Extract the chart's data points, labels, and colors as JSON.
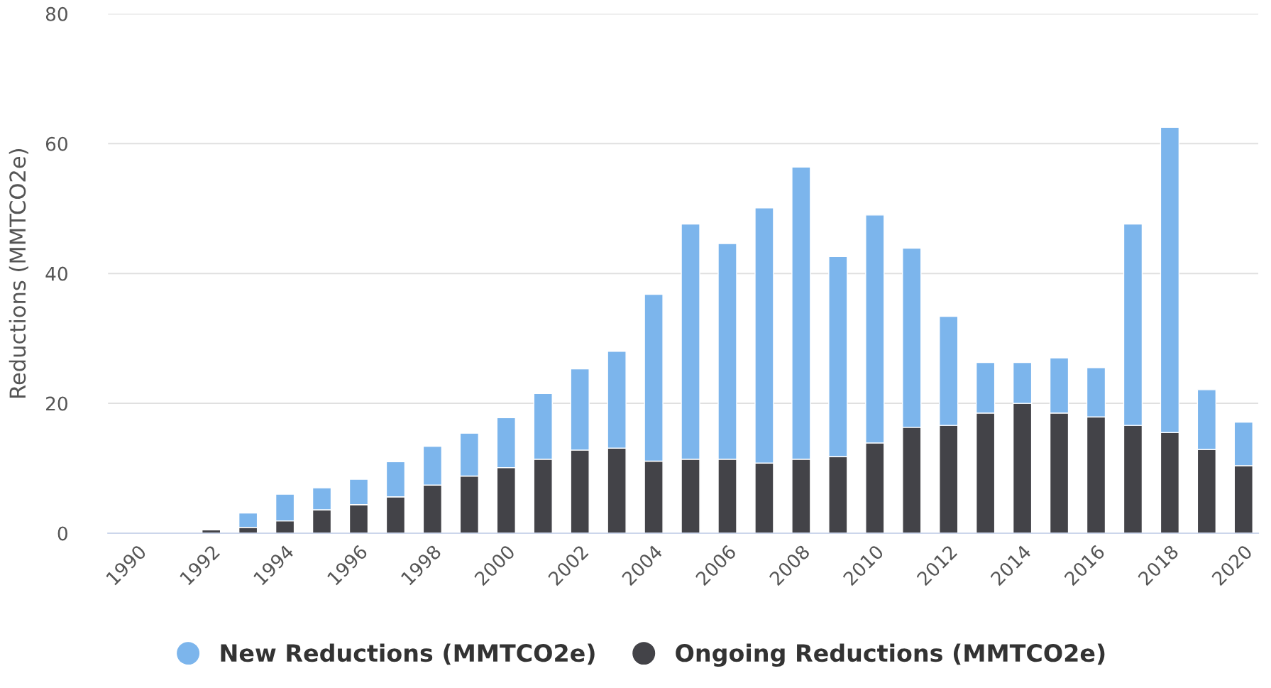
{
  "chart_data": {
    "type": "bar",
    "stacked": true,
    "ylabel": "Reductions (MMTCO2e)",
    "categories": [
      "1990",
      null,
      "1992",
      null,
      "1994",
      null,
      "1996",
      null,
      "1998",
      null,
      "2000",
      null,
      "2002",
      null,
      "2004",
      null,
      "2006",
      null,
      "2008",
      null,
      "2010",
      null,
      "2012",
      null,
      "2014",
      null,
      "2016",
      null,
      "2018",
      null,
      "2020"
    ],
    "series": [
      {
        "name": "Ongoing Reductions (MMTCO2e)",
        "color": "#434348",
        "values": [
          null,
          null,
          0.5,
          0.9,
          1.9,
          3.6,
          4.4,
          5.6,
          7.4,
          8.8,
          10.1,
          11.4,
          12.8,
          13.1,
          11.1,
          11.4,
          11.4,
          10.8,
          11.4,
          11.8,
          13.9,
          16.3,
          16.6,
          18.5,
          20,
          18.5,
          17.9,
          16.6,
          15.5,
          12.9,
          10.4
        ]
      },
      {
        "name": "New Reductions (MMTCO2e)",
        "color": "#7cb5ec",
        "values": [
          null,
          null,
          null,
          2.2,
          4.1,
          3.4,
          3.9,
          5.4,
          6,
          6.6,
          7.7,
          10.1,
          12.5,
          14.9,
          25.7,
          36.2,
          33.2,
          39.3,
          45,
          30.8,
          35.1,
          27.6,
          16.8,
          7.8,
          6.3,
          8.5,
          7.6,
          31,
          47,
          9.2,
          6.7
        ]
      }
    ],
    "ylim": [
      0,
      80
    ],
    "yticks": [
      0,
      20,
      40,
      60,
      80
    ],
    "grid": "y",
    "legend": "bottom",
    "marker": "circle"
  }
}
